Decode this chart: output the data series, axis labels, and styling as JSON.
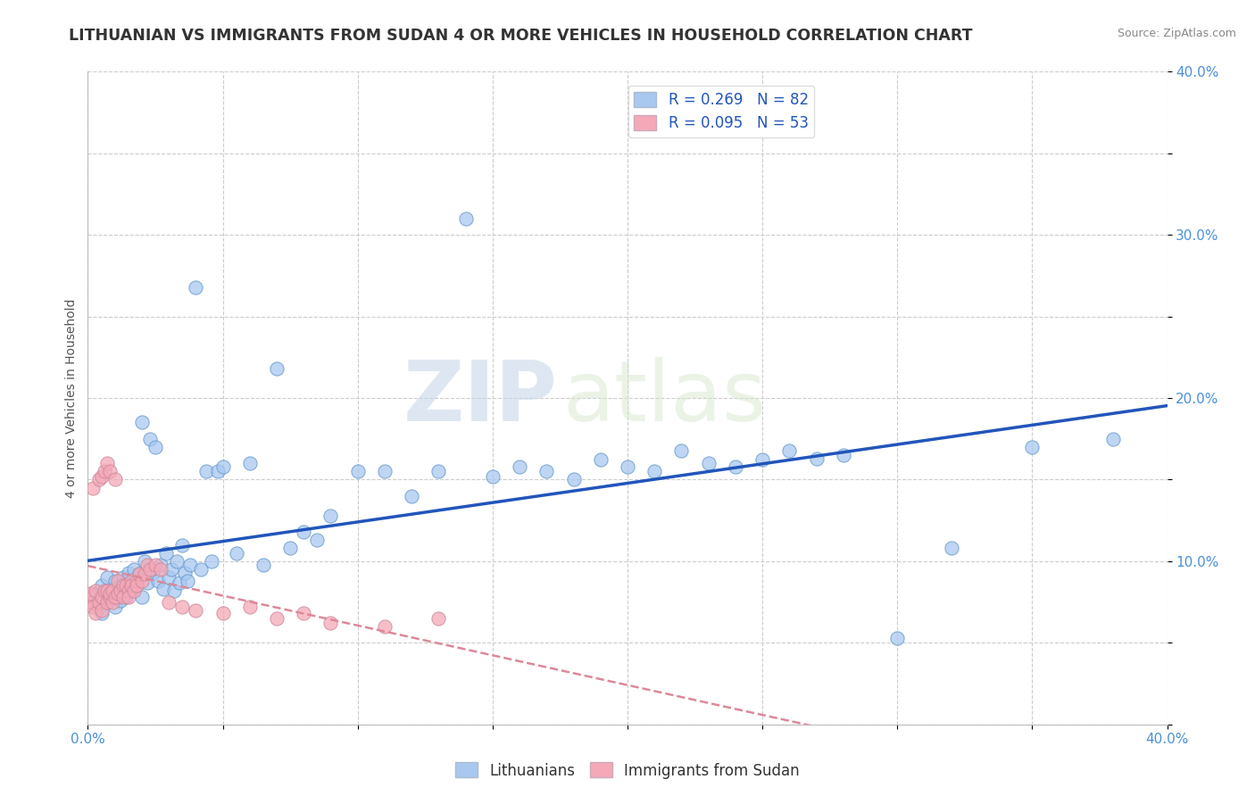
{
  "title": "LITHUANIAN VS IMMIGRANTS FROM SUDAN 4 OR MORE VEHICLES IN HOUSEHOLD CORRELATION CHART",
  "source": "Source: ZipAtlas.com",
  "ylabel": "4 or more Vehicles in Household",
  "xlim": [
    0.0,
    0.4
  ],
  "ylim": [
    0.0,
    0.4
  ],
  "xticks": [
    0.0,
    0.05,
    0.1,
    0.15,
    0.2,
    0.25,
    0.3,
    0.35,
    0.4
  ],
  "yticks": [
    0.0,
    0.05,
    0.1,
    0.15,
    0.2,
    0.25,
    0.3,
    0.35,
    0.4
  ],
  "legend_blue_label": "R = 0.269   N = 82",
  "legend_pink_label": "R = 0.095   N = 53",
  "blue_color": "#A8C8F0",
  "pink_color": "#F4A8B8",
  "blue_edge_color": "#6699CC",
  "pink_edge_color": "#CC8899",
  "blue_line_color": "#2255BB",
  "pink_line_color": "#DD8899",
  "watermark_zip": "ZIP",
  "watermark_atlas": "atlas",
  "background_color": "#FFFFFF",
  "grid_color": "#CCCCCC",
  "title_fontsize": 12.5,
  "source_fontsize": 9,
  "axis_label_fontsize": 10,
  "tick_fontsize": 11,
  "blue_scatter_x": [
    0.002,
    0.003,
    0.004,
    0.005,
    0.005,
    0.006,
    0.007,
    0.007,
    0.008,
    0.009,
    0.01,
    0.01,
    0.011,
    0.012,
    0.012,
    0.013,
    0.014,
    0.014,
    0.015,
    0.015,
    0.016,
    0.017,
    0.017,
    0.018,
    0.019,
    0.02,
    0.02,
    0.021,
    0.022,
    0.023,
    0.024,
    0.025,
    0.026,
    0.027,
    0.028,
    0.029,
    0.03,
    0.031,
    0.032,
    0.033,
    0.034,
    0.035,
    0.036,
    0.037,
    0.038,
    0.04,
    0.042,
    0.044,
    0.046,
    0.048,
    0.05,
    0.055,
    0.06,
    0.065,
    0.07,
    0.075,
    0.08,
    0.085,
    0.09,
    0.1,
    0.11,
    0.12,
    0.13,
    0.14,
    0.15,
    0.16,
    0.17,
    0.18,
    0.19,
    0.2,
    0.21,
    0.22,
    0.23,
    0.24,
    0.25,
    0.26,
    0.27,
    0.28,
    0.3,
    0.32,
    0.35,
    0.38
  ],
  "blue_scatter_y": [
    0.075,
    0.08,
    0.072,
    0.068,
    0.085,
    0.077,
    0.082,
    0.09,
    0.078,
    0.083,
    0.072,
    0.088,
    0.08,
    0.085,
    0.076,
    0.09,
    0.083,
    0.078,
    0.086,
    0.093,
    0.082,
    0.089,
    0.095,
    0.085,
    0.092,
    0.185,
    0.078,
    0.1,
    0.087,
    0.175,
    0.093,
    0.17,
    0.088,
    0.098,
    0.083,
    0.105,
    0.09,
    0.095,
    0.082,
    0.1,
    0.087,
    0.11,
    0.093,
    0.088,
    0.098,
    0.268,
    0.095,
    0.155,
    0.1,
    0.155,
    0.158,
    0.105,
    0.16,
    0.098,
    0.218,
    0.108,
    0.118,
    0.113,
    0.128,
    0.155,
    0.155,
    0.14,
    0.155,
    0.31,
    0.152,
    0.158,
    0.155,
    0.15,
    0.162,
    0.158,
    0.155,
    0.168,
    0.16,
    0.158,
    0.162,
    0.168,
    0.163,
    0.165,
    0.053,
    0.108,
    0.17,
    0.175
  ],
  "pink_scatter_x": [
    0.001,
    0.001,
    0.002,
    0.002,
    0.003,
    0.003,
    0.004,
    0.004,
    0.005,
    0.005,
    0.005,
    0.006,
    0.006,
    0.007,
    0.007,
    0.007,
    0.008,
    0.008,
    0.008,
    0.009,
    0.009,
    0.01,
    0.01,
    0.011,
    0.011,
    0.012,
    0.013,
    0.013,
    0.014,
    0.015,
    0.015,
    0.016,
    0.016,
    0.017,
    0.018,
    0.018,
    0.019,
    0.02,
    0.021,
    0.022,
    0.023,
    0.025,
    0.027,
    0.03,
    0.035,
    0.04,
    0.05,
    0.06,
    0.07,
    0.08,
    0.09,
    0.11,
    0.13
  ],
  "pink_scatter_y": [
    0.075,
    0.08,
    0.072,
    0.145,
    0.068,
    0.082,
    0.075,
    0.15,
    0.078,
    0.152,
    0.07,
    0.082,
    0.155,
    0.075,
    0.082,
    0.16,
    0.078,
    0.155,
    0.08,
    0.075,
    0.082,
    0.078,
    0.15,
    0.08,
    0.088,
    0.082,
    0.085,
    0.078,
    0.085,
    0.082,
    0.078,
    0.088,
    0.085,
    0.082,
    0.088,
    0.085,
    0.092,
    0.088,
    0.092,
    0.098,
    0.095,
    0.098,
    0.095,
    0.075,
    0.072,
    0.07,
    0.068,
    0.072,
    0.065,
    0.068,
    0.062,
    0.06,
    0.065
  ]
}
